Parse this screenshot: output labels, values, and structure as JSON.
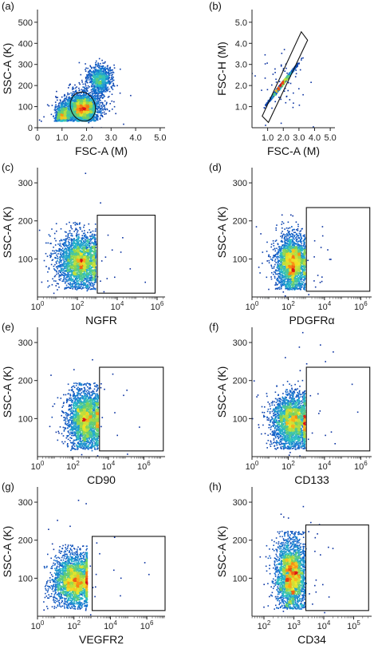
{
  "chart_data": [
    {
      "panel": "(a)",
      "type": "scatter",
      "subtype": "flow-cytometry density dot plot",
      "xlabel": "FSC-A (M)",
      "ylabel": "SSC-A (K)",
      "xscale": "linear",
      "xlim": [
        0,
        5.2
      ],
      "ylim": [
        0,
        560
      ],
      "xticks": [
        0,
        1.0,
        2.0,
        3.0,
        4.0,
        5.0
      ],
      "xtick_labels": [
        "0",
        "1.0",
        "2.0",
        "3.0",
        "4.0",
        "5.0"
      ],
      "yticks": [
        0,
        100,
        200,
        300,
        400,
        500
      ],
      "ytick_labels": [
        "0",
        "100",
        "200",
        "300",
        "400",
        "500"
      ],
      "clusters": [
        {
          "cx": 1.8,
          "cy": 95,
          "sx": 0.35,
          "sy": 35,
          "weight": 1.0
        },
        {
          "cx": 2.5,
          "cy": 230,
          "sx": 0.25,
          "sy": 35,
          "weight": 0.35
        },
        {
          "cx": 1.0,
          "cy": 60,
          "sx": 0.15,
          "sy": 25,
          "weight": 0.25
        }
      ],
      "gate": {
        "shape": "ellipse",
        "cx": 1.85,
        "cy": 100,
        "rx": 0.5,
        "ry": 70
      }
    },
    {
      "panel": "(b)",
      "type": "scatter",
      "subtype": "flow-cytometry density dot plot",
      "xlabel": "FSC-A (M)",
      "ylabel": "FSC-H (M)",
      "xscale": "linear",
      "xlim": [
        0,
        5.3
      ],
      "ylim": [
        0,
        5.6
      ],
      "xticks": [
        1.0,
        2.0,
        3.0,
        4.0,
        5.0
      ],
      "xtick_labels": [
        "1.0",
        "2.0",
        "3.0",
        "4.0",
        "5.0"
      ],
      "yticks": [
        1.0,
        2.0,
        3.0,
        4.0,
        5.0
      ],
      "ytick_labels": [
        "1.0",
        "2.0",
        "3.0",
        "4.0",
        "5.0"
      ],
      "clusters": [
        {
          "cx": 1.9,
          "cy": 2.1,
          "sx": 0.35,
          "sy": 0.35,
          "weight": 1.0,
          "corr": 0.95
        }
      ],
      "gate": {
        "shape": "polygon",
        "points": [
          [
            0.65,
            0.55
          ],
          [
            1.05,
            0.25
          ],
          [
            3.55,
            4.15
          ],
          [
            3.15,
            4.55
          ]
        ]
      }
    },
    {
      "panel": "(c)",
      "type": "scatter",
      "subtype": "flow-cytometry density dot plot",
      "xlabel": "NGFR",
      "ylabel": "SSC-A (K)",
      "xscale": "log",
      "xlim": [
        0,
        6.4
      ],
      "ylim": [
        0,
        340
      ],
      "xticks": [
        0,
        2,
        4,
        6
      ],
      "xtick_labels": [
        "10^0",
        "10^2",
        "10^4",
        "10^6"
      ],
      "yticks": [
        100,
        200,
        300
      ],
      "ytick_labels": [
        "100",
        "200",
        "300"
      ],
      "clusters": [
        {
          "cx": 2.1,
          "cy": 95,
          "sx": 0.55,
          "sy": 35,
          "weight": 1.0,
          "xmax": 2.9,
          "ymax": 200
        }
      ],
      "gate": {
        "shape": "rect",
        "x0": 3.0,
        "x1": 5.9,
        "y0": 10,
        "y1": 215
      }
    },
    {
      "panel": "(d)",
      "type": "scatter",
      "subtype": "flow-cytometry density dot plot",
      "xlabel": "PDGFRα",
      "ylabel": "SSC-A (K)",
      "xscale": "log",
      "xlim": [
        0,
        6.6
      ],
      "ylim": [
        0,
        340
      ],
      "xticks": [
        0,
        2,
        4,
        6
      ],
      "xtick_labels": [
        "10^0",
        "10^2",
        "10^4",
        "10^6"
      ],
      "yticks": [
        100,
        200,
        300
      ],
      "ytick_labels": [
        "100",
        "200",
        "300"
      ],
      "clusters": [
        {
          "cx": 2.2,
          "cy": 90,
          "sx": 0.45,
          "sy": 35,
          "weight": 1.0,
          "xmax": 2.9,
          "ymax": 200
        }
      ],
      "gate": {
        "shape": "rect",
        "x0": 3.0,
        "x1": 6.5,
        "y0": 15,
        "y1": 235
      }
    },
    {
      "panel": "(e)",
      "type": "scatter",
      "subtype": "flow-cytometry density dot plot",
      "xlabel": "CD90",
      "ylabel": "SSC-A (K)",
      "xscale": "log",
      "xlim": [
        0,
        7.2
      ],
      "ylim": [
        0,
        340
      ],
      "xticks": [
        0,
        2,
        4,
        6
      ],
      "xtick_labels": [
        "10^0",
        "10^2",
        "10^4",
        "10^6"
      ],
      "yticks": [
        100,
        200,
        300
      ],
      "ytick_labels": [
        "100",
        "200",
        "300"
      ],
      "clusters": [
        {
          "cx": 2.7,
          "cy": 100,
          "sx": 0.5,
          "sy": 40,
          "weight": 1.0,
          "xmax": 3.4,
          "ymax": 195
        }
      ],
      "gate": {
        "shape": "rect",
        "x0": 3.5,
        "x1": 7.1,
        "y0": 15,
        "y1": 235
      }
    },
    {
      "panel": "(f)",
      "type": "scatter",
      "subtype": "flow-cytometry density dot plot",
      "xlabel": "CD133",
      "ylabel": "SSC-A (K)",
      "xscale": "log",
      "xlim": [
        0,
        6.6
      ],
      "ylim": [
        0,
        340
      ],
      "xticks": [
        0,
        2,
        4,
        6
      ],
      "xtick_labels": [
        "10^0",
        "10^2",
        "10^4",
        "10^6"
      ],
      "yticks": [
        100,
        200,
        300
      ],
      "ytick_labels": [
        "100",
        "200",
        "300"
      ],
      "clusters": [
        {
          "cx": 2.2,
          "cy": 95,
          "sx": 0.55,
          "sy": 35,
          "weight": 1.0,
          "xmax": 2.9,
          "ymax": 205
        }
      ],
      "gate": {
        "shape": "rect",
        "x0": 3.0,
        "x1": 6.5,
        "y0": 15,
        "y1": 235
      }
    },
    {
      "panel": "(g)",
      "type": "scatter",
      "subtype": "flow-cytometry density dot plot",
      "xlabel": "VEGFR2",
      "ylabel": "SSC-A (K)",
      "xscale": "log",
      "xlim": [
        0,
        7.0
      ],
      "ylim": [
        0,
        340
      ],
      "xticks": [
        0,
        2,
        4,
        6
      ],
      "xtick_labels": [
        "10^0",
        "10^2",
        "10^4",
        "10^6"
      ],
      "yticks": [
        100,
        200,
        300
      ],
      "ytick_labels": [
        "100",
        "200",
        "300"
      ],
      "clusters": [
        {
          "cx": 2.0,
          "cy": 95,
          "sx": 0.6,
          "sy": 35,
          "weight": 1.0,
          "xmax": 2.7,
          "ymax": 190
        }
      ],
      "gate": {
        "shape": "rect",
        "x0": 3.0,
        "x1": 7.0,
        "y0": 15,
        "y1": 210
      }
    },
    {
      "panel": "(h)",
      "type": "scatter",
      "subtype": "flow-cytometry density dot plot",
      "xlabel": "CD34",
      "ylabel": "SSC-A (K)",
      "xscale": "log",
      "xlim": [
        1.6,
        5.6
      ],
      "ylim": [
        0,
        340
      ],
      "xticks": [
        2,
        3,
        4,
        5
      ],
      "xtick_labels": [
        "10^2",
        "10^3",
        "10^4",
        "10^5"
      ],
      "yticks": [
        100,
        200,
        300
      ],
      "ytick_labels": [
        "100",
        "200",
        "300"
      ],
      "clusters": [
        {
          "cx": 2.9,
          "cy": 110,
          "sx": 0.25,
          "sy": 45,
          "weight": 1.0,
          "xmax": 3.35,
          "ymax": 225
        }
      ],
      "gate": {
        "shape": "rect",
        "x0": 3.4,
        "x1": 5.5,
        "y0": 15,
        "y1": 240
      }
    }
  ]
}
